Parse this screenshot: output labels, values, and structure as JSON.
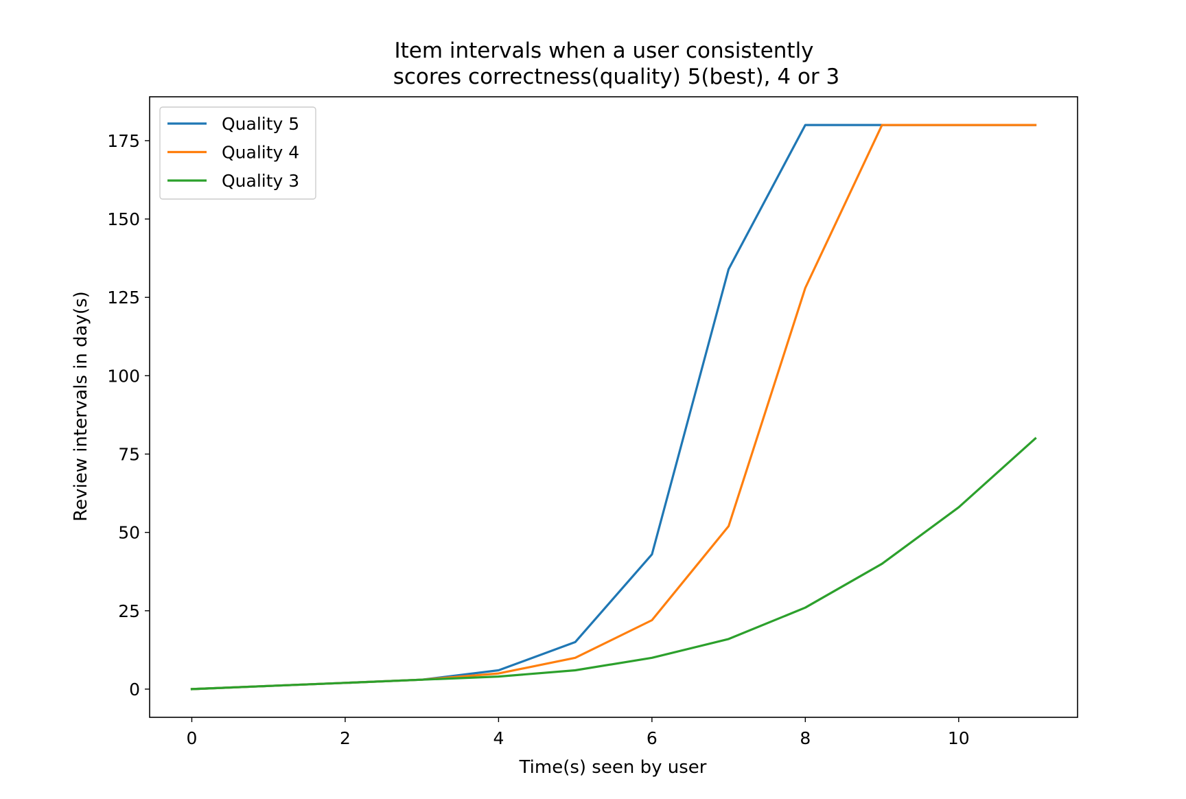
{
  "chart_data": {
    "type": "line",
    "title_lines": [
      "Item intervals when a user consistently",
      "scores correctness(quality) 5(best), 4 or 3"
    ],
    "xlabel": "Time(s) seen by user",
    "ylabel": "Review intervals in day(s)",
    "xlim": [
      -0.55,
      11.55
    ],
    "ylim": [
      -9,
      189
    ],
    "xticks": [
      0,
      2,
      4,
      6,
      8,
      10
    ],
    "yticks": [
      0,
      25,
      50,
      75,
      100,
      125,
      150,
      175
    ],
    "x": [
      0,
      1,
      2,
      3,
      4,
      5,
      6,
      7,
      8,
      9,
      10,
      11
    ],
    "series": [
      {
        "name": "Quality 5",
        "color": "#1f77b4",
        "values": [
          0,
          1,
          2,
          3,
          6,
          15,
          43,
          134,
          180,
          180,
          180,
          180
        ]
      },
      {
        "name": "Quality 4",
        "color": "#ff7f0e",
        "values": [
          0,
          1,
          2,
          3,
          5,
          10,
          22,
          52,
          128,
          180,
          180,
          180
        ]
      },
      {
        "name": "Quality 3",
        "color": "#2ca02c",
        "values": [
          0,
          1,
          2,
          3,
          4,
          6,
          10,
          16,
          26,
          40,
          58,
          80
        ]
      }
    ],
    "legend_position": "upper-left",
    "grid": false
  }
}
